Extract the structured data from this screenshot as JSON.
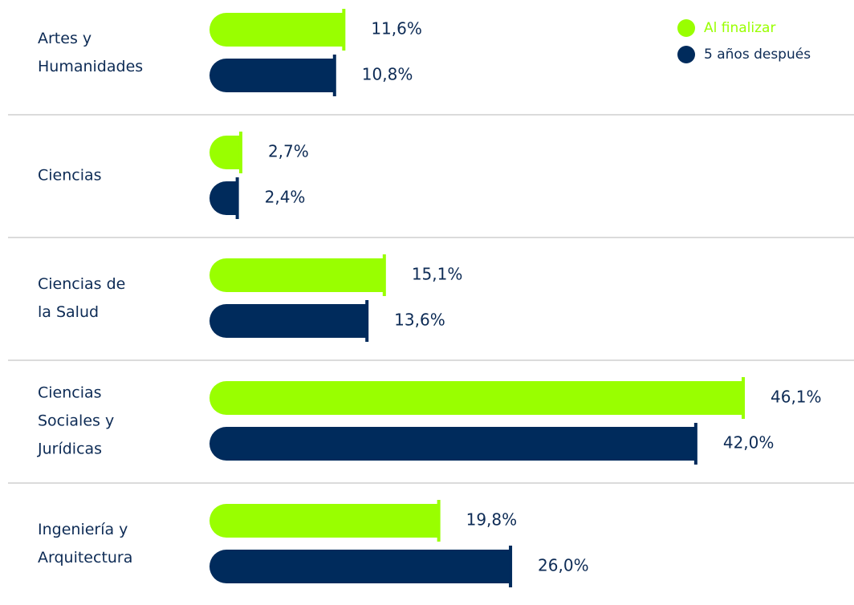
{
  "chart_data": {
    "type": "bar",
    "orientation": "horizontal",
    "categories": [
      "Artes y\nHumanidades",
      "Ciencias",
      "Ciencias de\nla Salud",
      "Ciencias\nSociales y\nJurídicas",
      "Ingeniería y\nArquitectura"
    ],
    "series": [
      {
        "name": "Al finalizar",
        "color": "#99ff00",
        "values": [
          11.6,
          2.7,
          15.1,
          46.1,
          19.8
        ],
        "value_labels": [
          "11,6%",
          "2,7%",
          "15,1%",
          "46,1%",
          "19,8%"
        ]
      },
      {
        "name": "5 años después",
        "color": "#002b5c",
        "values": [
          10.8,
          2.4,
          13.6,
          42.0,
          26.0
        ],
        "value_labels": [
          "10,8%",
          "2,4%",
          "13,6%",
          "42,0%",
          "26,0%"
        ]
      }
    ],
    "legend": "top-right"
  }
}
